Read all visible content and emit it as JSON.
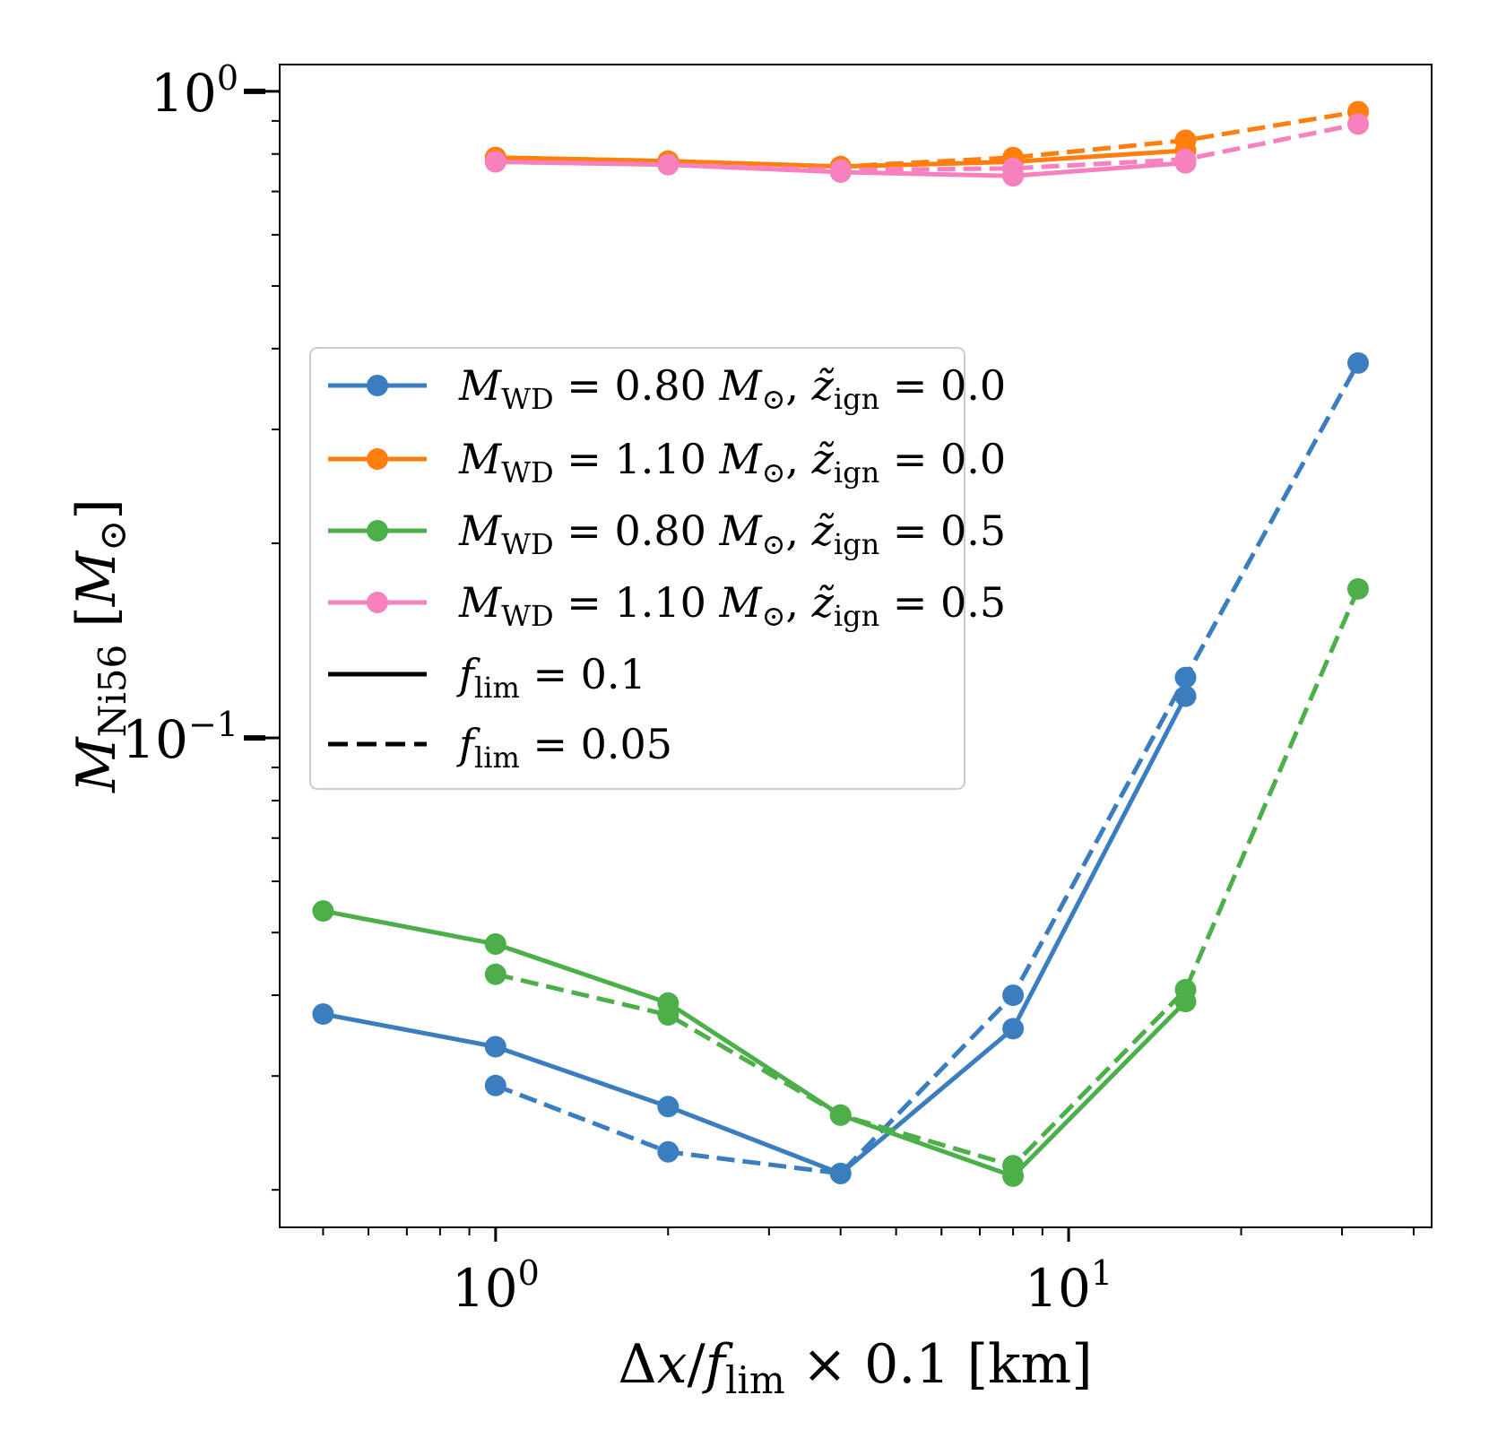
{
  "chart_data": {
    "type": "line",
    "xscale": "log",
    "yscale": "log",
    "xlim": [
      0.42,
      43
    ],
    "ylim": [
      0.0175,
      1.1
    ],
    "xlabel": "Δx/f_lim × 0.1 [km]",
    "ylabel": "M_Ni56 [M_⊙]",
    "x_ticks": [
      {
        "value": 1,
        "label": "10^0"
      },
      {
        "value": 10,
        "label": "10^1"
      }
    ],
    "y_ticks": [
      {
        "value": 0.1,
        "label": "10^−1"
      },
      {
        "value": 1,
        "label": "10^0"
      }
    ],
    "grid": false,
    "legend_position": "center-left",
    "series": [
      {
        "name": "M_WD = 0.80 M_⊙, z̃_ign = 0.0",
        "color": "#3a7ebf",
        "f_lim": 0.1,
        "linestyle": "solid",
        "x": [
          0.5,
          1,
          2,
          4,
          8,
          16
        ],
        "y": [
          0.0374,
          0.0333,
          0.0269,
          0.0212,
          0.0355,
          0.116
        ]
      },
      {
        "name": "M_WD = 0.80 M_⊙, z̃_ign = 0.0",
        "color": "#3a7ebf",
        "f_lim": 0.05,
        "linestyle": "dashed",
        "x": [
          1,
          2,
          4,
          8,
          16,
          32
        ],
        "y": [
          0.029,
          0.0229,
          0.0212,
          0.04,
          0.124,
          0.38
        ]
      },
      {
        "name": "M_WD = 1.10 M_⊙, z̃_ign = 0.0",
        "color": "#ff7f0e",
        "f_lim": 0.1,
        "linestyle": "solid",
        "x": [
          1,
          2,
          4,
          8,
          16
        ],
        "y": [
          0.79,
          0.78,
          0.765,
          0.778,
          0.81
        ]
      },
      {
        "name": "M_WD = 1.10 M_⊙, z̃_ign = 0.0",
        "color": "#ff7f0e",
        "f_lim": 0.05,
        "linestyle": "dashed",
        "x": [
          1,
          2,
          4,
          8,
          16,
          32
        ],
        "y": [
          0.79,
          0.78,
          0.765,
          0.79,
          0.84,
          0.93
        ]
      },
      {
        "name": "M_WD = 0.80 M_⊙, z̃_ign = 0.5",
        "color": "#4daf4a",
        "f_lim": 0.1,
        "linestyle": "solid",
        "x": [
          0.5,
          1,
          2,
          4,
          8,
          16
        ],
        "y": [
          0.054,
          0.048,
          0.0389,
          0.0261,
          0.021,
          0.0391
        ]
      },
      {
        "name": "M_WD = 0.80 M_⊙, z̃_ign = 0.5",
        "color": "#4daf4a",
        "f_lim": 0.05,
        "linestyle": "dashed",
        "x": [
          1,
          2,
          4,
          8,
          16,
          32
        ],
        "y": [
          0.0431,
          0.0373,
          0.0261,
          0.0218,
          0.0408,
          0.17
        ]
      },
      {
        "name": "M_WD = 1.10 M_⊙, z̃_ign = 0.5",
        "color": "#f781bf",
        "f_lim": 0.1,
        "linestyle": "solid",
        "x": [
          1,
          2,
          4,
          8,
          16
        ],
        "y": [
          0.778,
          0.77,
          0.75,
          0.74,
          0.775
        ]
      },
      {
        "name": "M_WD = 1.10 M_⊙, z̃_ign = 0.5",
        "color": "#f781bf",
        "f_lim": 0.05,
        "linestyle": "dashed",
        "x": [
          1,
          2,
          4,
          8,
          16,
          32
        ],
        "y": [
          0.778,
          0.77,
          0.755,
          0.76,
          0.785,
          0.89
        ]
      }
    ],
    "legend": [
      {
        "kind": "marker-line",
        "color": "#3a7ebf",
        "lhs": "M",
        "lhs_sub": "WD",
        "mass": "0.80",
        "m": "M",
        "sun": "⊙",
        "z": "z̃",
        "z_sub": "ign",
        "zval": "0.0"
      },
      {
        "kind": "marker-line",
        "color": "#ff7f0e",
        "lhs": "M",
        "lhs_sub": "WD",
        "mass": "1.10",
        "m": "M",
        "sun": "⊙",
        "z": "z̃",
        "z_sub": "ign",
        "zval": "0.0"
      },
      {
        "kind": "marker-line",
        "color": "#4daf4a",
        "lhs": "M",
        "lhs_sub": "WD",
        "mass": "0.80",
        "m": "M",
        "sun": "⊙",
        "z": "z̃",
        "z_sub": "ign",
        "zval": "0.5"
      },
      {
        "kind": "marker-line",
        "color": "#f781bf",
        "lhs": "M",
        "lhs_sub": "WD",
        "mass": "1.10",
        "m": "M",
        "sun": "⊙",
        "z": "z̃",
        "z_sub": "ign",
        "zval": "0.5"
      },
      {
        "kind": "solid",
        "color": "#000000",
        "lhs": "f",
        "lhs_sub": "lim",
        "val": "0.1"
      },
      {
        "kind": "dashed",
        "color": "#000000",
        "lhs": "f",
        "lhs_sub": "lim",
        "val": "0.05"
      }
    ],
    "axis_text": {
      "xlabel_parts": {
        "delta": "Δ",
        "x": "x",
        "slash": "/",
        "f": "f",
        "sub": "lim",
        "tail": " × 0.1 [km]"
      },
      "ylabel_parts": {
        "m": "M",
        "sub": "Ni56",
        "open": " [",
        "msun": "M",
        "sun": "⊙",
        "close": "]"
      }
    }
  }
}
